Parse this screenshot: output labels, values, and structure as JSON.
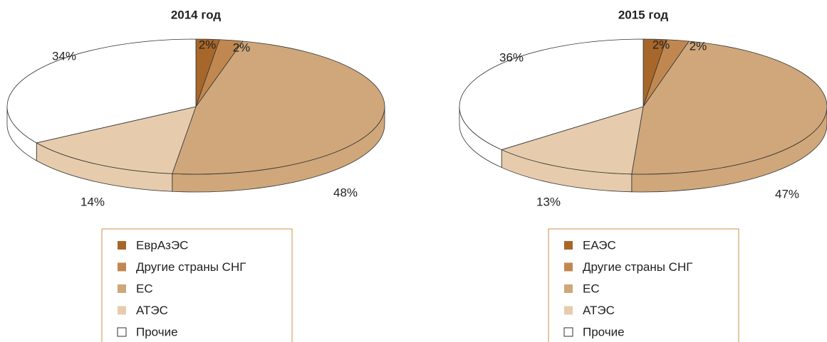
{
  "chart_data": [
    {
      "type": "pie",
      "title": "2014 год",
      "categories": [
        "ЕврАзЭС",
        "Другие страны СНГ",
        "ЕС",
        "АТЭС",
        "Прочие"
      ],
      "values": [
        2,
        2,
        48,
        14,
        34
      ],
      "value_labels": [
        "2%",
        "2%",
        "48%",
        "14%",
        "34%"
      ],
      "colors": [
        "#a8672a",
        "#c08850",
        "#cfa77a",
        "#e6ccad",
        "#ffffff"
      ]
    },
    {
      "type": "pie",
      "title": "2015 год",
      "categories": [
        "ЕАЭС",
        "Другие страны СНГ",
        "ЕС",
        "АТЭС",
        "Прочие"
      ],
      "values": [
        2,
        2,
        47,
        13,
        36
      ],
      "value_labels": [
        "2%",
        "2%",
        "47%",
        "13%",
        "36%"
      ],
      "colors": [
        "#a8672a",
        "#c08850",
        "#cfa77a",
        "#e6ccad",
        "#ffffff"
      ]
    }
  ]
}
